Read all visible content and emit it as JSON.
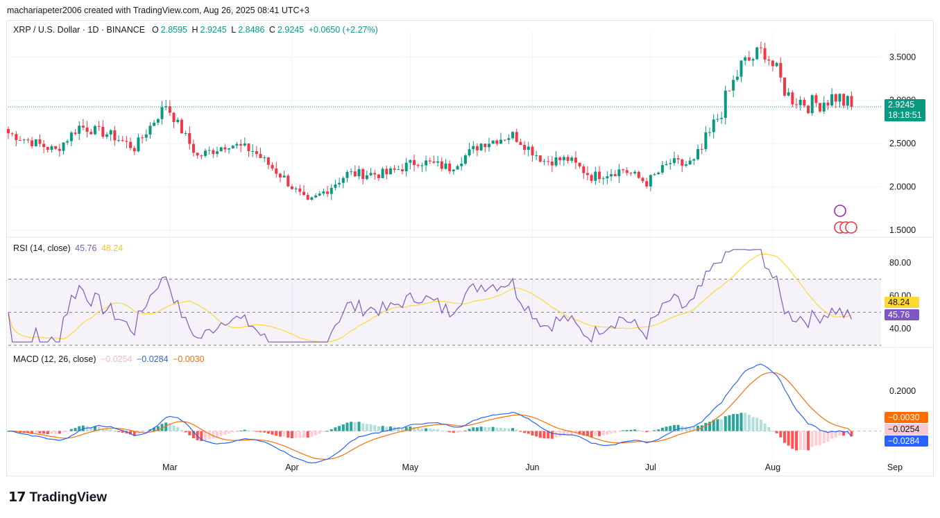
{
  "credit": "machariapeter2006 created with TradingView.com, Aug 26, 2025 08:41 UTC+3",
  "header": {
    "symbol": "XRP / U.S. Dollar · 1D · BINANCE",
    "o_label": "O",
    "o_value": "2.8595",
    "h_label": "H",
    "h_value": "2.9245",
    "l_label": "L",
    "l_value": "2.8486",
    "c_label": "C",
    "c_value": "2.9245",
    "change": "+0.0650 (+2.27%)"
  },
  "rsi_legend": {
    "label": "RSI (14, close)",
    "rsi": "45.76",
    "ma": "48.24"
  },
  "macd_legend": {
    "label": "MACD (12, 26, close)",
    "hist": "−0.0254",
    "macd": "−0.0284",
    "signal": "−0.0030"
  },
  "price_badge": {
    "price": "2.9245",
    "countdown": "18:18:51"
  },
  "rsi_badges": {
    "ma": "48.24",
    "rsi": "45.76"
  },
  "macd_badges": {
    "signal": "−0.0030",
    "hist": "−0.0254",
    "macd": "−0.0284"
  },
  "logo": "TradingView",
  "colors": {
    "up": "#089981",
    "down": "#f23645",
    "rsi": "#7e57c2",
    "rsi_ma": "#fdd835",
    "macd": "#2962ff",
    "signal": "#ff6d00"
  },
  "chart_data": [
    {
      "type": "candlestick",
      "title": "XRP / U.S. Dollar · 1D · BINANCE",
      "y_ticks": [
        "3.5000",
        "3.0000",
        "2.5000",
        "2.0000",
        "1.5000"
      ],
      "x_ticks": [
        "Mar",
        "Apr",
        "May",
        "Jun",
        "Jul",
        "Aug",
        "Sep"
      ],
      "ylim": [
        1.45,
        3.8
      ],
      "last_close": 2.9245,
      "anchors_x_day": [
        0,
        12,
        18,
        26,
        32,
        40,
        48,
        56,
        62,
        70,
        76,
        86,
        96,
        104,
        112,
        120,
        128,
        136,
        142,
        148,
        156,
        162,
        168,
        174,
        178,
        186,
        192,
        198,
        204,
        210,
        214
      ],
      "anchors_close": [
        2.62,
        2.42,
        2.7,
        2.6,
        2.45,
        2.95,
        2.35,
        2.5,
        2.42,
        2.1,
        1.8,
        2.15,
        2.15,
        2.3,
        2.22,
        2.5,
        2.6,
        2.3,
        2.32,
        2.12,
        2.2,
        2.05,
        2.28,
        2.25,
        2.6,
        3.4,
        3.58,
        3.05,
        2.95,
        3.05,
        2.92
      ]
    },
    {
      "type": "line",
      "title": "RSI (14, close)",
      "y_ticks": [
        "80.00",
        "60.00",
        "40.00"
      ],
      "ylim": [
        30,
        90
      ],
      "bands": [
        70,
        50,
        30
      ],
      "series": [
        {
          "name": "RSI",
          "last": 45.76
        },
        {
          "name": "MA",
          "last": 48.24
        }
      ]
    },
    {
      "type": "line",
      "title": "MACD (12, 26, close)",
      "y_ticks": [
        "0.2000"
      ],
      "ylim": [
        -0.14,
        0.37
      ],
      "series": [
        {
          "name": "MACD",
          "last": -0.0284
        },
        {
          "name": "Signal",
          "last": -0.003
        },
        {
          "name": "Histogram",
          "last": -0.0254
        }
      ]
    }
  ]
}
